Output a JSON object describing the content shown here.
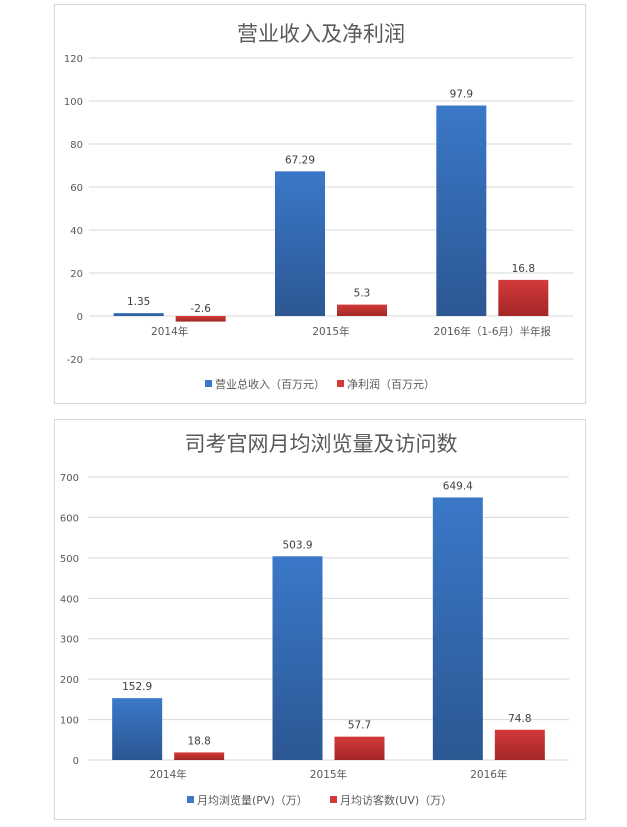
{
  "colors": {
    "series1": "#3a78c8",
    "series1_dark": "#2c5793",
    "series2": "#d43a3a",
    "series2_dark": "#a42626",
    "grid": "#d9d9d9"
  },
  "chart_data": [
    {
      "type": "bar",
      "title": "营业收入及净利润",
      "categories": [
        "2014年",
        "2015年",
        "2016年（1-6月）半年报"
      ],
      "series": [
        {
          "name": "营业总收入（百万元）",
          "values": [
            1.35,
            67.29,
            97.9
          ],
          "labels": [
            "1.35",
            "67.29",
            "97.9"
          ]
        },
        {
          "name": "净利润（百万元）",
          "values": [
            -2.6,
            5.3,
            16.8
          ],
          "labels": [
            "-2.6",
            "5.3",
            "16.8"
          ]
        }
      ],
      "yticks": [
        "120",
        "100",
        "80",
        "60",
        "40",
        "20",
        "0",
        "-20"
      ],
      "ylim": [
        -20,
        120
      ],
      "grid": true,
      "legend": "bottom"
    },
    {
      "type": "bar",
      "title": "司考官网月均浏览量及访问数",
      "categories": [
        "2014年",
        "2015年",
        "2016年"
      ],
      "series": [
        {
          "name": "月均浏览量(PV)（万）",
          "values": [
            152.9,
            503.9,
            649.4
          ],
          "labels": [
            "152.9",
            "503.9",
            "649.4"
          ]
        },
        {
          "name": "月均访客数(UV)（万）",
          "values": [
            18.8,
            57.7,
            74.8
          ],
          "labels": [
            "18.8",
            "57.7",
            "74.8"
          ]
        }
      ],
      "yticks": [
        "700",
        "600",
        "500",
        "400",
        "300",
        "200",
        "100",
        "0"
      ],
      "ylim": [
        0,
        700
      ],
      "grid": true,
      "legend": "bottom"
    }
  ]
}
